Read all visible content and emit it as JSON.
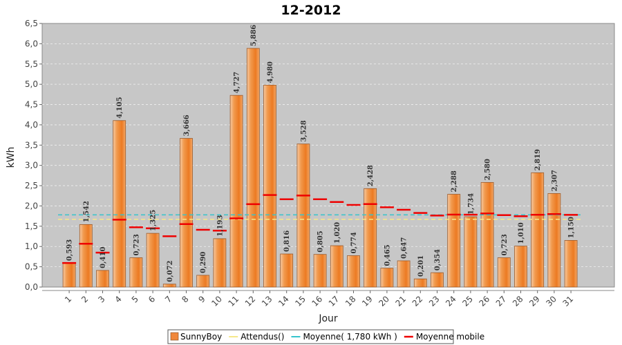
{
  "chart_data": {
    "type": "bar",
    "title": "12-2012",
    "xlabel": "Jour",
    "ylabel": "kWh",
    "ylim": [
      0,
      6.5
    ],
    "ytick_step": 0.5,
    "grid": true,
    "legend_position": "bottom",
    "categories": [
      "1",
      "2",
      "3",
      "4",
      "5",
      "6",
      "7",
      "8",
      "9",
      "10",
      "11",
      "12",
      "13",
      "14",
      "15",
      "16",
      "17",
      "18",
      "19",
      "20",
      "21",
      "22",
      "23",
      "24",
      "25",
      "26",
      "27",
      "28",
      "29",
      "30",
      "31"
    ],
    "value_labels": [
      "0,593",
      "1,542",
      "0,410",
      "4,105",
      "0,723",
      "1,325",
      "0,072",
      "3,666",
      "0,290",
      "1,193",
      "4,727",
      "5,886",
      "4,980",
      "0,816",
      "3,528",
      "0,805",
      "1,020",
      "0,774",
      "2,428",
      "0,465",
      "0,647",
      "0,201",
      "0,354",
      "2,288",
      "1,734",
      "2,580",
      "0,723",
      "1,010",
      "2,819",
      "2,307",
      "1,150"
    ],
    "series": [
      {
        "name": "SunnyBoy",
        "kind": "bar",
        "color": "#f0873a",
        "values": [
          0.593,
          1.542,
          0.41,
          4.105,
          0.723,
          1.325,
          0.072,
          3.666,
          0.29,
          1.193,
          4.727,
          5.886,
          4.98,
          0.816,
          3.528,
          0.805,
          1.02,
          0.774,
          2.428,
          0.465,
          0.647,
          0.201,
          0.354,
          2.288,
          1.734,
          2.58,
          0.723,
          1.01,
          2.819,
          2.307,
          1.15
        ]
      },
      {
        "name": "Attendus()",
        "kind": "line",
        "color": "#f5e88a",
        "values": [
          1.67,
          1.67,
          1.67,
          1.67,
          1.67,
          1.67,
          1.67,
          1.67,
          1.67,
          1.67,
          1.67,
          1.67,
          1.67,
          1.67,
          1.67,
          1.67,
          1.67,
          1.67,
          1.67,
          1.67,
          1.67,
          1.67,
          1.67,
          1.67,
          1.67,
          1.67,
          1.67,
          1.67,
          1.67,
          1.67,
          1.67
        ]
      },
      {
        "name": "Moyenne( 1,780 kWh )",
        "kind": "line",
        "color": "#35c4cc",
        "values": [
          1.78,
          1.78,
          1.78,
          1.78,
          1.78,
          1.78,
          1.78,
          1.78,
          1.78,
          1.78,
          1.78,
          1.78,
          1.78,
          1.78,
          1.78,
          1.78,
          1.78,
          1.78,
          1.78,
          1.78,
          1.78,
          1.78,
          1.78,
          1.78,
          1.78,
          1.78,
          1.78,
          1.78,
          1.78,
          1.78,
          1.78
        ]
      },
      {
        "name": "Moyenne mobile",
        "kind": "marker",
        "color": "#ee0000",
        "values": [
          0.593,
          1.068,
          0.848,
          1.662,
          1.474,
          1.449,
          1.252,
          1.553,
          1.413,
          1.391,
          1.694,
          2.044,
          2.27,
          2.166,
          2.257,
          2.166,
          2.098,
          2.025,
          2.047,
          1.968,
          1.905,
          1.828,
          1.764,
          1.786,
          1.784,
          1.814,
          1.774,
          1.746,
          1.783,
          1.8,
          1.78
        ]
      }
    ]
  }
}
